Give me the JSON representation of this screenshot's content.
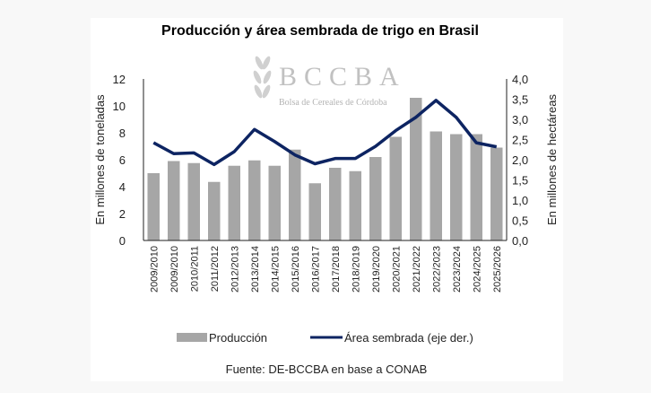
{
  "chart_data": {
    "type": "bar+line",
    "title": "Producción y área sembrada de trigo en Brasil",
    "ylabel": "En millones de toneladas",
    "y2label": "En millones de hectáreas",
    "ylim": [
      0,
      12
    ],
    "y2lim": [
      0,
      4
    ],
    "yticks": [
      "0",
      "2",
      "4",
      "6",
      "8",
      "10",
      "12"
    ],
    "y2ticks": [
      "0,0",
      "0,5",
      "1,0",
      "1,5",
      "2,0",
      "2,5",
      "3,0",
      "3,5",
      "4,0"
    ],
    "categories": [
      "2009/2010",
      "2009/2010",
      "2010/2011",
      "2011/2012",
      "2012/2013",
      "2013/2014",
      "2014/2015",
      "2015/2016",
      "2016/2017",
      "2017/2018",
      "2018/2019",
      "2019/2020",
      "2020/2021",
      "2021/2022",
      "2022/2023",
      "2023/2024",
      "2024/2025",
      "2025/2026"
    ],
    "series": [
      {
        "name": "Producción",
        "type": "bar",
        "axis": "left",
        "color": "#a6a6a6",
        "values": [
          5.0,
          5.9,
          5.75,
          4.35,
          5.55,
          5.95,
          5.55,
          6.75,
          4.25,
          5.4,
          5.15,
          6.2,
          7.7,
          10.6,
          8.1,
          7.9,
          7.9,
          6.9
        ]
      },
      {
        "name": "Área sembrada (eje der.)",
        "type": "line",
        "axis": "right",
        "color": "#0d2462",
        "values": [
          2.42,
          2.15,
          2.17,
          1.88,
          2.2,
          2.75,
          2.45,
          2.12,
          1.9,
          2.03,
          2.03,
          2.33,
          2.72,
          3.05,
          3.47,
          3.05,
          2.42,
          2.32
        ]
      }
    ],
    "legend_position": "bottom",
    "grid": false,
    "source": "Fuente: DE-BCCBA en base a CONAB"
  },
  "watermark": {
    "logo_text": "BCCBA",
    "subtitle": "Bolsa de Cereales de Córdoba"
  }
}
